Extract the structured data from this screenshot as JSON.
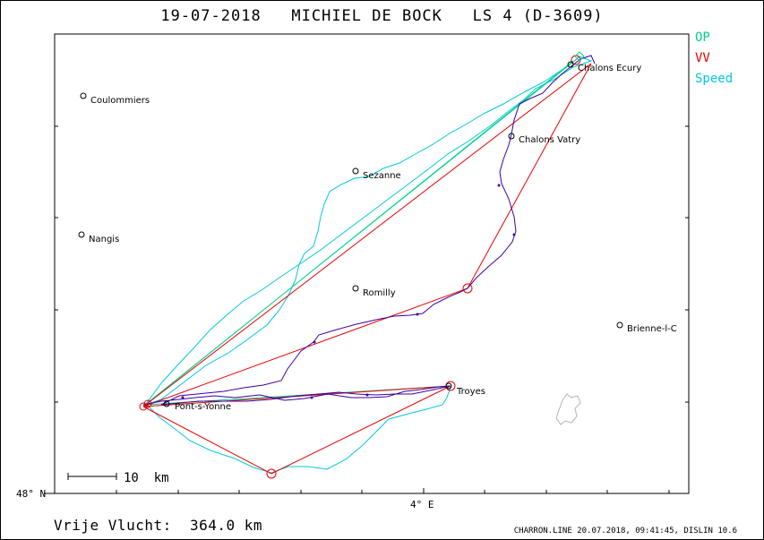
{
  "title": "19-07-2018   MICHIEL DE BOCK   LS 4 (D-3609)",
  "legend": [
    {
      "label": "OP",
      "color": "#00d28c"
    },
    {
      "label": "VV",
      "color": "#e60000"
    },
    {
      "label": "Speed",
      "color": "#00c8dc"
    }
  ],
  "towns": [
    {
      "name": "Coulommiers"
    },
    {
      "name": "Nangis"
    },
    {
      "name": "Sezanne"
    },
    {
      "name": "Romilly"
    },
    {
      "name": "Chalons Vatry"
    },
    {
      "name": "Chalons Ecury"
    },
    {
      "name": "Troyes"
    },
    {
      "name": "Pont-s-Yonne"
    },
    {
      "name": "Brienne-l-C"
    }
  ],
  "axes": {
    "lat_label": "48° N",
    "lon_label": "4° E"
  },
  "scale": {
    "label": "10  km"
  },
  "distance_label": "Vrije Vlucht:  364.0 km",
  "footer": "CHARRON.LINE 20.07.2018, 09:41:45, DISLIN 10.6",
  "colors": {
    "track": "#3c00a0",
    "op": "#00d28c",
    "vv": "#e60000",
    "speed": "#00c8dc",
    "lake": "#b4b4b4"
  }
}
